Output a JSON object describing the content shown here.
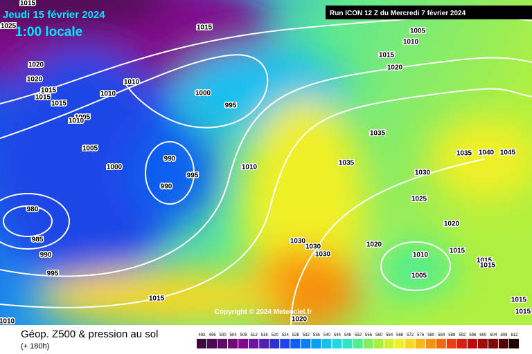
{
  "header": {
    "date": "Jeudi 15 février 2024",
    "time": "1:00 locale",
    "run": "Run ICON 12 Z du Mercredi 7 février 2024"
  },
  "map": {
    "isobar_labels": [
      "1015",
      "1025",
      "1015",
      "1005",
      "1010",
      "1015",
      "1020",
      "1020",
      "1020",
      "1015",
      "1015",
      "1015",
      "1010",
      "1010",
      "1000",
      "995",
      "1005",
      "1010",
      "1005",
      "1000",
      "990",
      "995",
      "990",
      "1010",
      "1035",
      "1035",
      "1030",
      "1035",
      "1040",
      "1045",
      "1025",
      "980",
      "985",
      "990",
      "995",
      "1020",
      "1020",
      "1030",
      "1030",
      "1030",
      "1015",
      "1010",
      "1015",
      "1015",
      "1005",
      "1015",
      "1015",
      "1015",
      "1010",
      "1020"
    ],
    "copyright": "Copyright © 2024 Meteociel.fr"
  },
  "footer": {
    "title": "Géop. Z500 & pression au sol",
    "subtitle": "(+ 180h)"
  },
  "legend": {
    "values": [
      492,
      496,
      500,
      504,
      508,
      512,
      516,
      520,
      524,
      528,
      532,
      536,
      540,
      544,
      548,
      552,
      556,
      560,
      564,
      568,
      572,
      576,
      580,
      584,
      588,
      592,
      596,
      600,
      604,
      608,
      612
    ],
    "colors": [
      "#3c0a3c",
      "#4e0a50",
      "#5e0a64",
      "#700a78",
      "#800a8c",
      "#6a14a0",
      "#5020b4",
      "#3030d0",
      "#1e46e6",
      "#1060f0",
      "#0a80f0",
      "#0aa0f0",
      "#14c0f0",
      "#20d8e0",
      "#30e6c0",
      "#50ee90",
      "#80f060",
      "#a8f040",
      "#d0f030",
      "#f0f028",
      "#f8d820",
      "#f8b818",
      "#f89010",
      "#f06810",
      "#e84010",
      "#d82010",
      "#c00a0a",
      "#a00a0a",
      "#800808",
      "#500606",
      "#200404"
    ]
  }
}
